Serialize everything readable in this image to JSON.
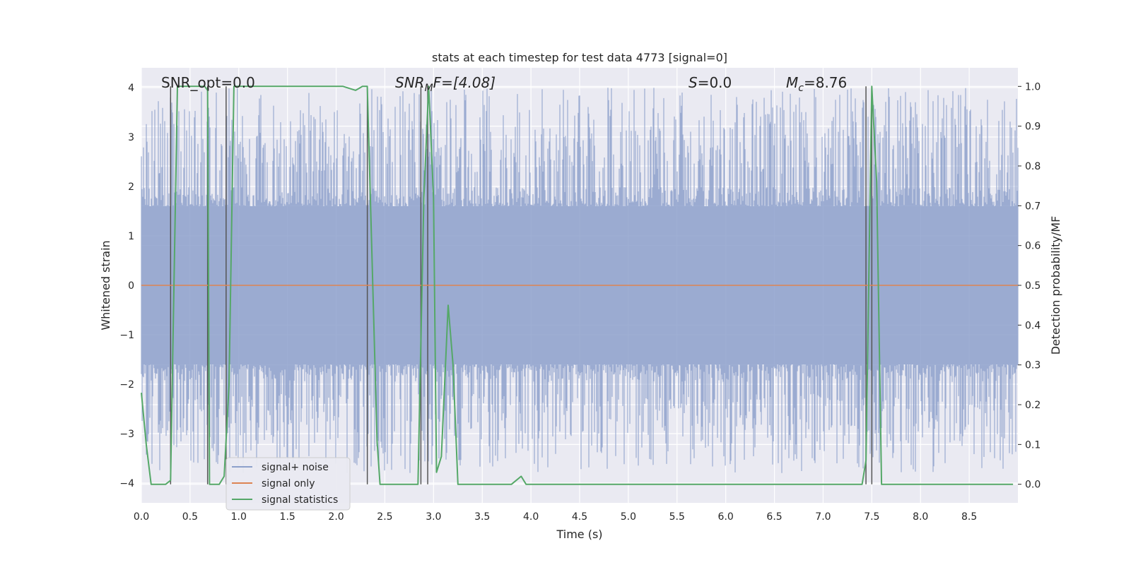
{
  "chart_data": {
    "type": "line",
    "title": "stats at each timestep for test data 4773 [signal=0]",
    "xlabel": "Time (s)",
    "ylabel_left": "Whitened strain",
    "ylabel_right": "Detection probability/MF",
    "xlim": [
      0.0,
      9.0
    ],
    "ylim_left": [
      -4.4,
      4.4
    ],
    "ylim_right": [
      -0.0467,
      1.0467
    ],
    "x_ticks": [
      "0.0",
      "0.5",
      "1.0",
      "1.5",
      "2.0",
      "2.5",
      "3.0",
      "3.5",
      "4.0",
      "4.5",
      "5.0",
      "5.5",
      "6.0",
      "6.5",
      "7.0",
      "7.5",
      "8.0",
      "8.5"
    ],
    "y_ticks_left": [
      "−4",
      "−3",
      "−2",
      "−1",
      "0",
      "1",
      "2",
      "3",
      "4"
    ],
    "y_ticks_right": [
      "0.0",
      "0.1",
      "0.2",
      "0.3",
      "0.4",
      "0.5",
      "0.6",
      "0.7",
      "0.8",
      "0.9",
      "1.0"
    ],
    "annotations": {
      "snr_opt": "SNR_opt=0.0",
      "snr_mf_base": "SNR",
      "snr_mf_sub": "M",
      "snr_mf_rest": "F=[4.08]",
      "s_label": "S",
      "s_rest": "=0.0",
      "mc_base": "M",
      "mc_sub": "c",
      "mc_rest": "=8.76"
    },
    "legend": [
      {
        "label": "signal+ noise",
        "color": "#8da0cb"
      },
      {
        "label": "signal only",
        "color": "#dd8452"
      },
      {
        "label": "signal statistics",
        "color": "#55a868"
      }
    ],
    "series": [
      {
        "name": "signal+ noise",
        "kind": "noise-band",
        "axis": "left",
        "color": "#8da0cb",
        "t_range": [
          0.0,
          9.0
        ],
        "core_range": [
          -1.6,
          1.6
        ],
        "peak_max": 4.0,
        "peak_min": -3.8
      },
      {
        "name": "signal only",
        "axis": "left",
        "color": "#dd8452",
        "x": [
          0.0,
          9.0
        ],
        "values": [
          0.0,
          0.0
        ]
      },
      {
        "name": "signal statistics",
        "axis": "right",
        "color": "#55a868",
        "x": [
          0.0,
          0.05,
          0.1,
          0.2,
          0.25,
          0.3,
          0.37,
          0.4,
          0.5,
          0.6,
          0.65,
          0.68,
          0.7,
          0.75,
          0.8,
          0.85,
          0.9,
          0.95,
          1.0,
          1.5,
          2.0,
          2.07,
          2.2,
          2.27,
          2.32,
          2.42,
          2.45,
          2.5,
          2.8,
          2.84,
          2.9,
          2.95,
          3.0,
          3.03,
          3.08,
          3.15,
          3.2,
          3.25,
          3.33,
          3.5,
          3.8,
          3.9,
          3.95,
          4.0,
          4.5,
          4.8,
          4.9,
          5.0,
          6.0,
          7.0,
          7.3,
          7.4,
          7.44,
          7.5,
          7.55,
          7.6,
          8.0,
          8.5,
          8.95
        ],
        "values": [
          0.23,
          0.1,
          0.0,
          0.0,
          0.0,
          0.01,
          1.0,
          1.0,
          1.0,
          1.0,
          1.0,
          0.99,
          0.0,
          0.0,
          0.0,
          0.02,
          0.25,
          1.0,
          1.0,
          1.0,
          1.0,
          1.0,
          0.99,
          1.0,
          1.0,
          0.11,
          0.0,
          0.0,
          0.0,
          0.0,
          0.72,
          1.0,
          0.72,
          0.03,
          0.07,
          0.45,
          0.3,
          0.0,
          0.0,
          0.0,
          0.0,
          0.02,
          0.0,
          0.0,
          0.0,
          0.0,
          0.0,
          0.0,
          0.0,
          0.0,
          0.0,
          0.0,
          0.06,
          1.0,
          0.76,
          0.0,
          0.0,
          0.0,
          0.0
        ]
      }
    ],
    "vertical_markers_s": [
      0.3,
      0.68,
      0.87,
      2.32,
      2.87,
      2.94,
      7.44,
      7.5
    ]
  }
}
